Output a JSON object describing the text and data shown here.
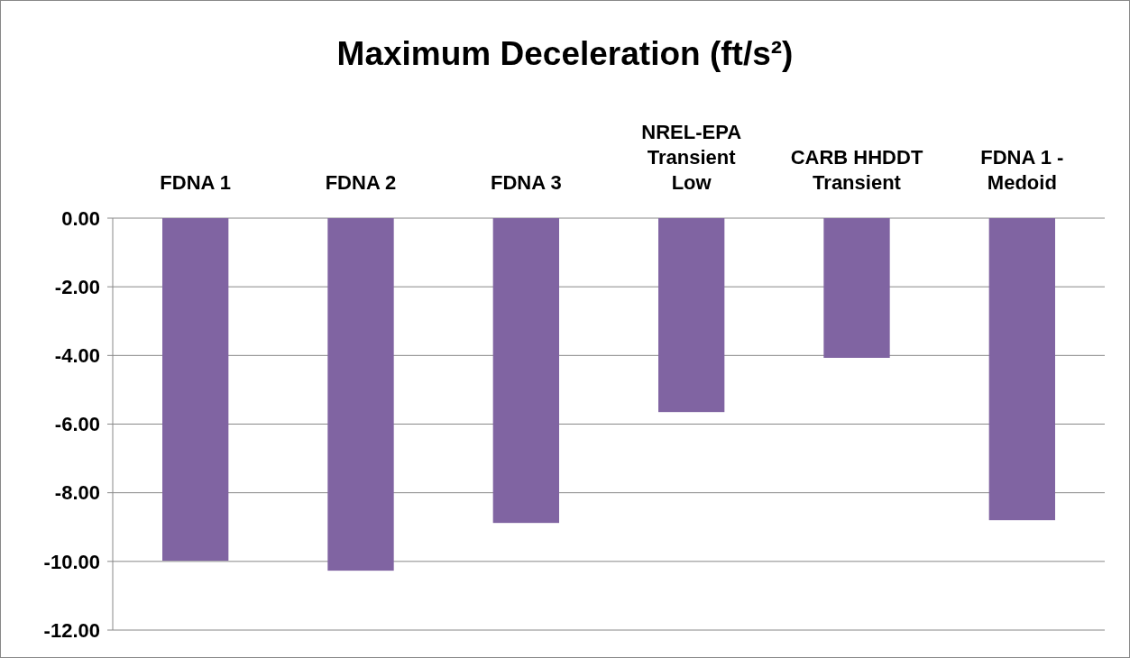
{
  "chart_data": {
    "type": "bar",
    "title": "Maximum Deceleration (ft/s²)",
    "categories": [
      "FDNA 1",
      "FDNA 2",
      "FDNA 3",
      "NREL-EPA Transient Low",
      "CARB HHDDT Transient",
      "FDNA 1 - Medoid"
    ],
    "values": [
      -9.98,
      -10.27,
      -8.88,
      -5.65,
      -4.07,
      -8.8
    ],
    "color": "#8064a2",
    "ylim": [
      -12,
      0
    ],
    "yticks": [
      {
        "value": 0,
        "label": "0.00"
      },
      {
        "value": -2,
        "label": "-2.00"
      },
      {
        "value": -4,
        "label": "-4.00"
      },
      {
        "value": -6,
        "label": "-6.00"
      },
      {
        "value": -8,
        "label": "-8.00"
      },
      {
        "value": -10,
        "label": "-10.00"
      },
      {
        "value": -12,
        "label": "-12.00"
      }
    ],
    "grid": "y"
  }
}
